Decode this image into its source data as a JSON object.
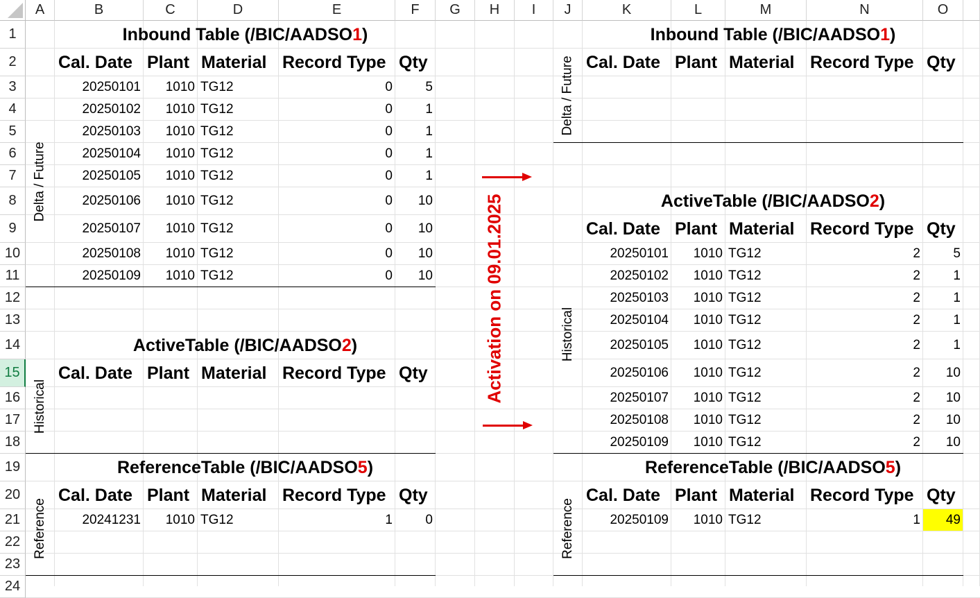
{
  "columns": [
    "A",
    "B",
    "C",
    "D",
    "E",
    "F",
    "G",
    "H",
    "I",
    "J",
    "K",
    "L",
    "M",
    "N",
    "O"
  ],
  "rows": [
    1,
    2,
    3,
    4,
    5,
    6,
    7,
    8,
    9,
    10,
    11,
    12,
    13,
    14,
    15,
    16,
    17,
    18,
    19,
    20,
    21,
    22,
    23,
    24
  ],
  "selected_row": 15,
  "colors": {
    "accent_red": "#e00000",
    "highlight": "#ffff00",
    "selected_header": "#107c41"
  },
  "activation": {
    "label": "Activation on 09.01.2025"
  },
  "highlight_cell": "O21",
  "left": {
    "inbound": {
      "title": "Inbound Table (/BIC/AADSO",
      "title_num": "1",
      "title_end": ")",
      "side_label": "Delta / Future",
      "headers": [
        "Cal. Date",
        "Plant",
        "Material",
        "Record Type",
        "Qty"
      ],
      "rows": [
        [
          "20250101",
          "1010",
          "TG12",
          "0",
          "5"
        ],
        [
          "20250102",
          "1010",
          "TG12",
          "0",
          "1"
        ],
        [
          "20250103",
          "1010",
          "TG12",
          "0",
          "1"
        ],
        [
          "20250104",
          "1010",
          "TG12",
          "0",
          "1"
        ],
        [
          "20250105",
          "1010",
          "TG12",
          "0",
          "1"
        ],
        [
          "20250106",
          "1010",
          "TG12",
          "0",
          "10"
        ],
        [
          "20250107",
          "1010",
          "TG12",
          "0",
          "10"
        ],
        [
          "20250108",
          "1010",
          "TG12",
          "0",
          "10"
        ],
        [
          "20250109",
          "1010",
          "TG12",
          "0",
          "10"
        ]
      ]
    },
    "active": {
      "title": "ActiveTable (/BIC/AADSO",
      "title_num": "2",
      "title_end": ")",
      "side_label": "Historical",
      "headers": [
        "Cal. Date",
        "Plant",
        "Material",
        "Record Type",
        "Qty"
      ],
      "rows": []
    },
    "reference": {
      "title": "ReferenceTable (/BIC/AADSO",
      "title_num": "5",
      "title_end": ")",
      "side_label": "Reference",
      "headers": [
        "Cal. Date",
        "Plant",
        "Material",
        "Record Type",
        "Qty"
      ],
      "rows": [
        [
          "20241231",
          "1010",
          "TG12",
          "1",
          "0"
        ]
      ]
    }
  },
  "right": {
    "inbound": {
      "title": "Inbound Table (/BIC/AADSO",
      "title_num": "1",
      "title_end": ")",
      "side_label": "Delta / Future",
      "headers": [
        "Cal. Date",
        "Plant",
        "Material",
        "Record Type",
        "Qty"
      ],
      "rows": []
    },
    "active": {
      "title": "ActiveTable (/BIC/AADSO",
      "title_num": "2",
      "title_end": ")",
      "side_label": "Historical",
      "headers": [
        "Cal. Date",
        "Plant",
        "Material",
        "Record Type",
        "Qty"
      ],
      "rows": [
        [
          "20250101",
          "1010",
          "TG12",
          "2",
          "5"
        ],
        [
          "20250102",
          "1010",
          "TG12",
          "2",
          "1"
        ],
        [
          "20250103",
          "1010",
          "TG12",
          "2",
          "1"
        ],
        [
          "20250104",
          "1010",
          "TG12",
          "2",
          "1"
        ],
        [
          "20250105",
          "1010",
          "TG12",
          "2",
          "1"
        ],
        [
          "20250106",
          "1010",
          "TG12",
          "2",
          "10"
        ],
        [
          "20250107",
          "1010",
          "TG12",
          "2",
          "10"
        ],
        [
          "20250108",
          "1010",
          "TG12",
          "2",
          "10"
        ],
        [
          "20250109",
          "1010",
          "TG12",
          "2",
          "10"
        ]
      ]
    },
    "reference": {
      "title": "ReferenceTable (/BIC/AADSO",
      "title_num": "5",
      "title_end": ")",
      "side_label": "Reference",
      "headers": [
        "Cal. Date",
        "Plant",
        "Material",
        "Record Type",
        "Qty"
      ],
      "rows": [
        [
          "20250109",
          "1010",
          "TG12",
          "1",
          "49"
        ]
      ]
    }
  }
}
